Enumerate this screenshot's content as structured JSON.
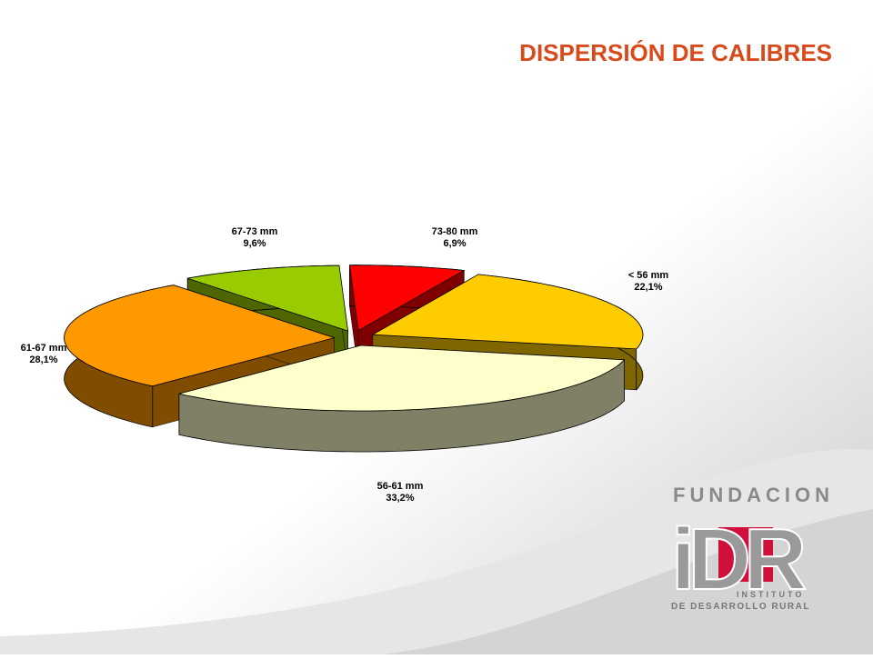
{
  "chart_data": {
    "type": "pie",
    "title": "DISPERSIÓN DE CALIBRES",
    "categories": [
      "<  56 mm",
      "56-61 mm",
      "61-67 mm",
      "67-73 mm",
      "73-80 mm"
    ],
    "values": [
      22.1,
      33.2,
      28.1,
      9.6,
      6.9
    ],
    "value_labels": [
      "22,1%",
      "33,2%",
      "28,1%",
      "9,6%",
      "6,9%"
    ],
    "colors": [
      "#ffcc00",
      "#ffffcc",
      "#ff9900",
      "#99cc00",
      "#ff0000"
    ]
  },
  "logo": {
    "top": "FUNDACION",
    "mark": "iDR",
    "line1": "INSTITUTO",
    "line2": "DE DESARROLLO RURAL"
  }
}
